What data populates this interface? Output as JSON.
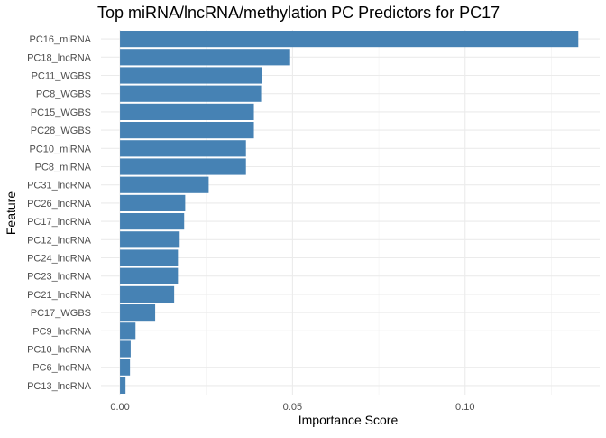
{
  "chart_data": {
    "type": "bar",
    "orientation": "horizontal",
    "title": "Top miRNA/lncRNA/methylation PC Predictors for PC17",
    "xlabel": "Importance Score",
    "ylabel": "Feature",
    "xlim": [
      -0.0055,
      0.139
    ],
    "xticks": [
      0.0,
      0.05,
      0.1
    ],
    "xtick_labels": [
      "0.00",
      "0.05",
      "0.10"
    ],
    "grid": true,
    "bar_color": "#4682B4",
    "categories": [
      "PC16_miRNA",
      "PC18_lncRNA",
      "PC11_WGBS",
      "PC8_WGBS",
      "PC15_WGBS",
      "PC28_WGBS",
      "PC10_miRNA",
      "PC8_miRNA",
      "PC31_lncRNA",
      "PC26_lncRNA",
      "PC17_lncRNA",
      "PC12_lncRNA",
      "PC24_lncRNA",
      "PC23_lncRNA",
      "PC21_lncRNA",
      "PC17_WGBS",
      "PC9_lncRNA",
      "PC10_lncRNA",
      "PC6_lncRNA",
      "PC13_lncRNA"
    ],
    "values": [
      0.1328,
      0.0493,
      0.0412,
      0.0409,
      0.0388,
      0.0388,
      0.0365,
      0.0365,
      0.0257,
      0.0189,
      0.0186,
      0.0173,
      0.0168,
      0.0168,
      0.0157,
      0.0102,
      0.0045,
      0.0031,
      0.0029,
      0.0016
    ]
  }
}
